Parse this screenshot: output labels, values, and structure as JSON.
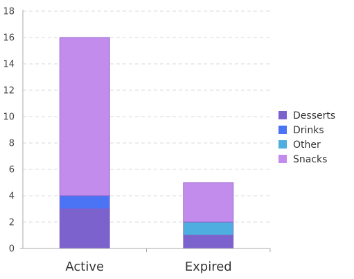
{
  "chart_data": {
    "type": "bar",
    "stacked": true,
    "categories": [
      "Active",
      "Expired"
    ],
    "series": [
      {
        "name": "Desserts",
        "values": [
          3,
          1
        ],
        "color": "#7b62cc"
      },
      {
        "name": "Drinks",
        "values": [
          1,
          0
        ],
        "color": "#4b74f5"
      },
      {
        "name": "Other",
        "values": [
          0,
          1
        ],
        "color": "#4eaee0"
      },
      {
        "name": "Snacks",
        "values": [
          12,
          3
        ],
        "color": "#c28ced"
      }
    ],
    "ylim": [
      0,
      18
    ],
    "yticks": [
      0,
      2,
      4,
      6,
      8,
      10,
      12,
      14,
      16,
      18
    ],
    "grid": true,
    "legend": "right"
  }
}
